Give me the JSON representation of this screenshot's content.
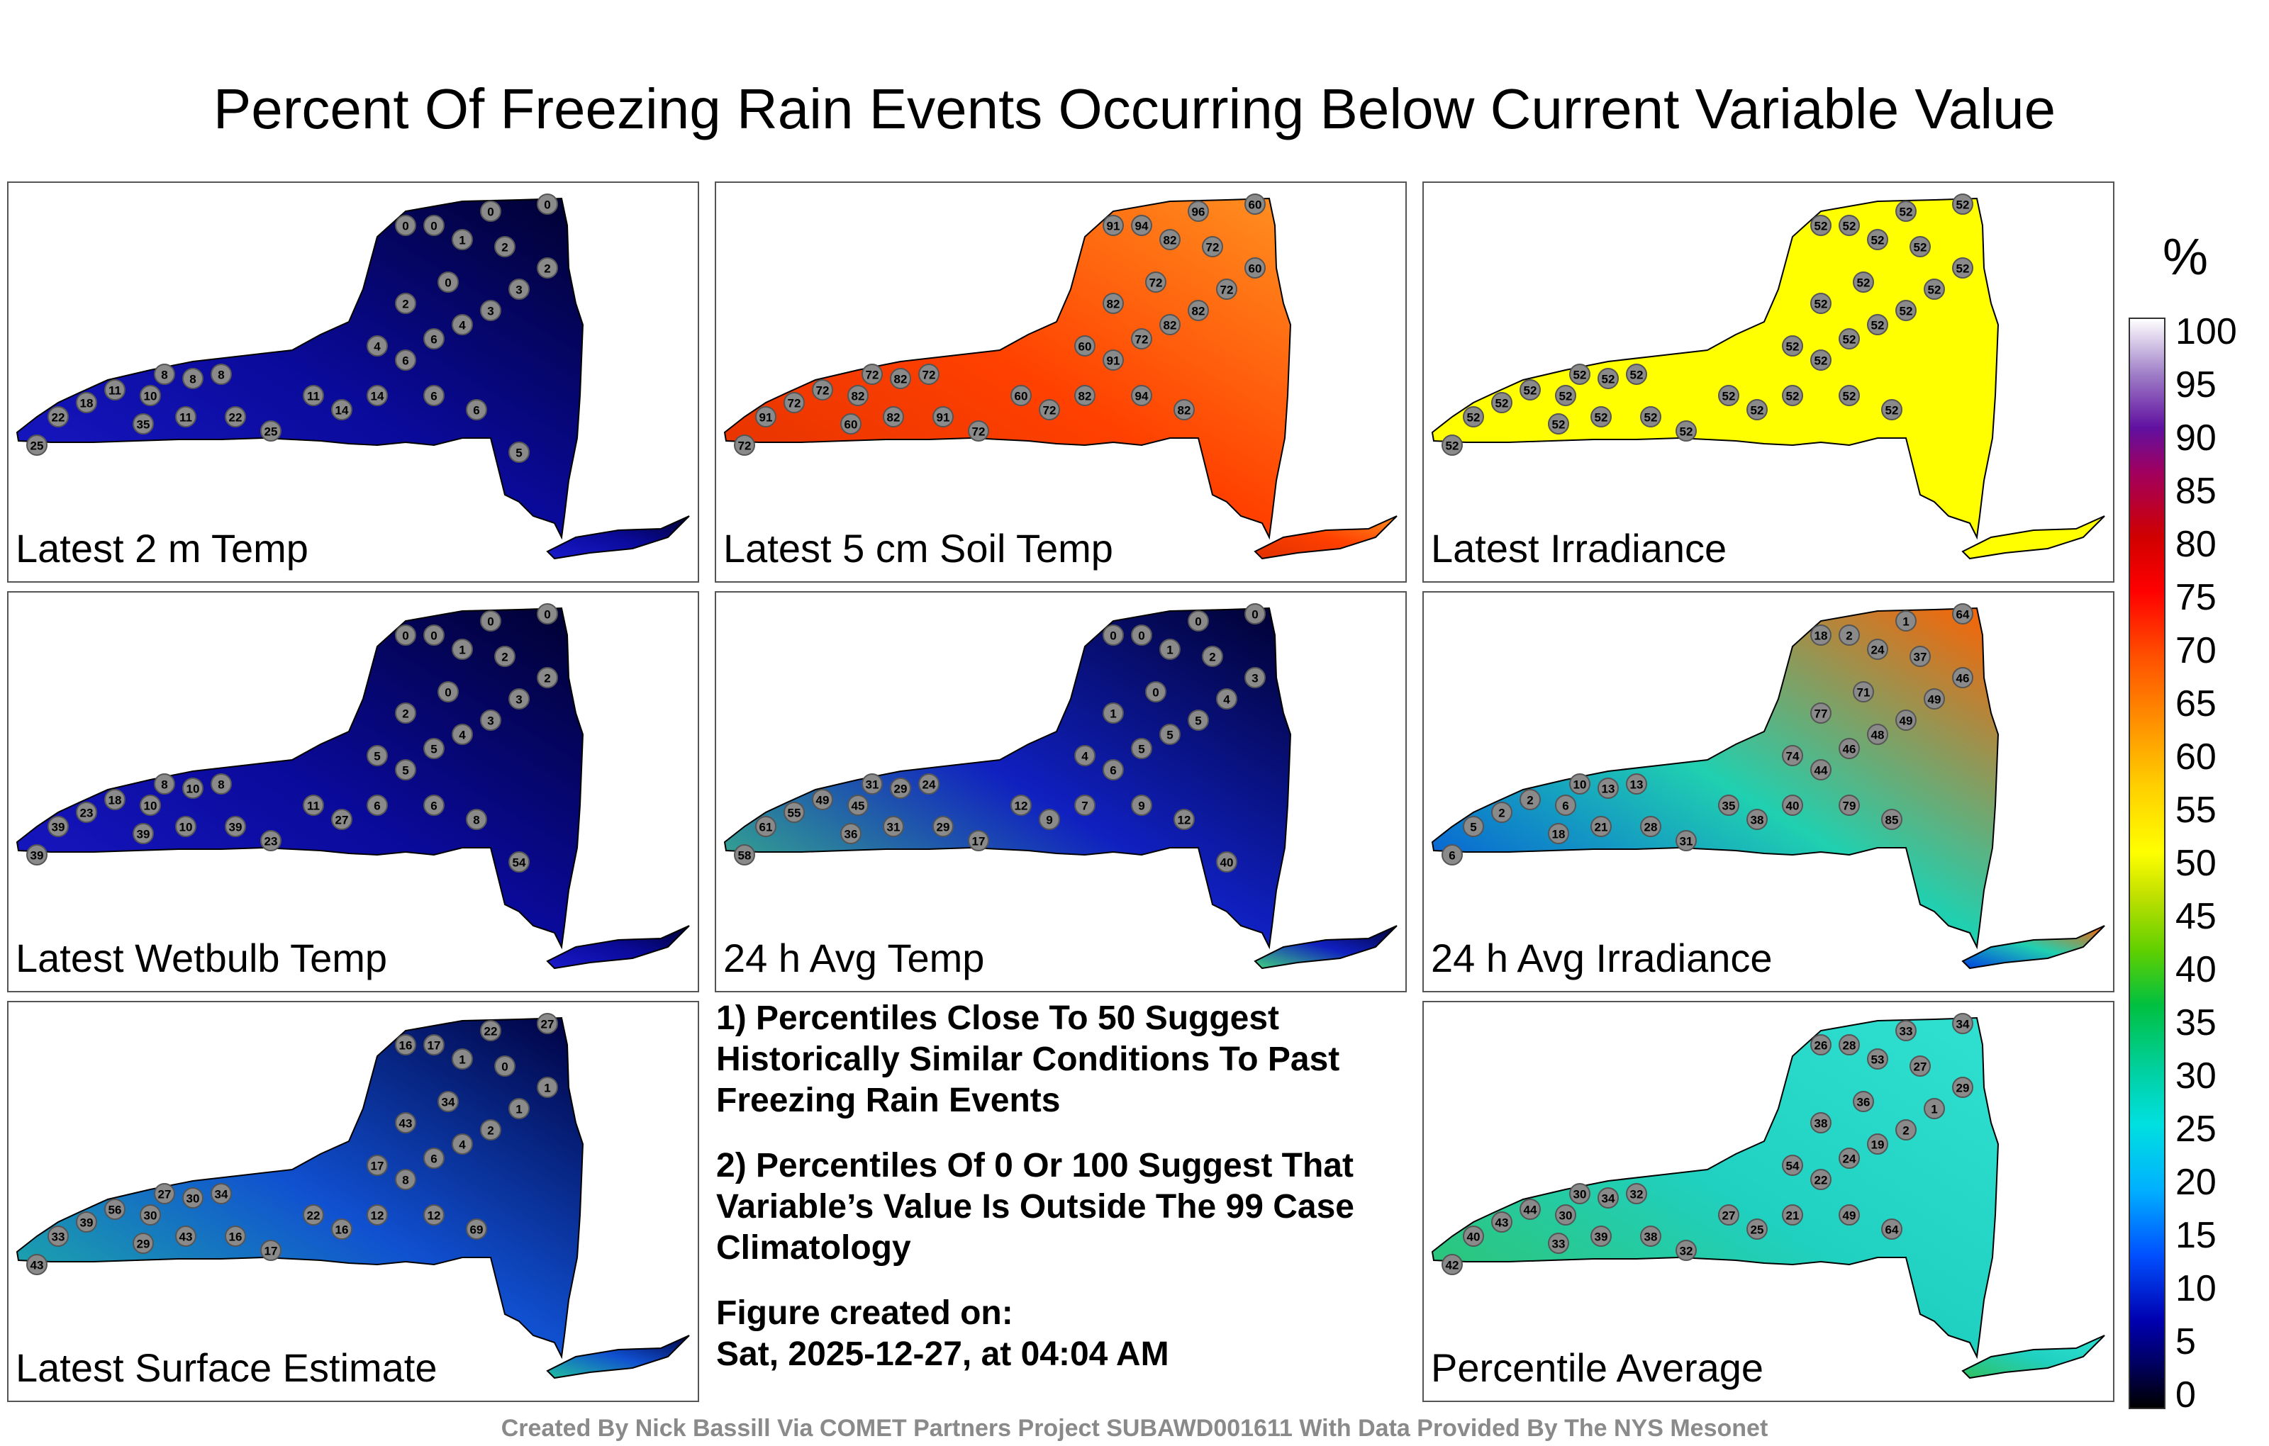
{
  "title": "Percent Of Freezing Rain Events Occurring Below Current Variable Value",
  "panels": [
    {
      "label": "Latest 2 m Temp",
      "regions": [
        "#1a1acc",
        "#0a0a9a",
        "#000030"
      ],
      "stations": [
        "25",
        "22",
        "18",
        "11",
        "10",
        "8",
        "8",
        "8",
        "35",
        "11",
        "22",
        "25",
        "11",
        "14",
        "14",
        "6",
        "6",
        "4",
        "3",
        "3",
        "2",
        "2",
        "1",
        "0",
        "0",
        "0",
        "0",
        "0",
        "2",
        "4",
        "6",
        "6",
        "5"
      ]
    },
    {
      "label": "Latest 5 cm Soil Temp",
      "regions": [
        "#e03000",
        "#ff4000",
        "#ff9020"
      ],
      "stations": [
        "72",
        "91",
        "72",
        "72",
        "82",
        "72",
        "82",
        "72",
        "60",
        "82",
        "91",
        "72",
        "60",
        "72",
        "82",
        "91",
        "72",
        "82",
        "82",
        "72",
        "60",
        "72",
        "82",
        "91",
        "94",
        "96",
        "60",
        "72",
        "82",
        "60",
        "94",
        "82"
      ]
    },
    {
      "label": "Latest Irradiance",
      "regions": [
        "#ffff00",
        "#ffff00",
        "#ffff00"
      ],
      "stations": [
        "52",
        "52",
        "52",
        "52",
        "52",
        "52",
        "52",
        "52",
        "52",
        "52",
        "52",
        "52",
        "52",
        "52",
        "52",
        "52",
        "52",
        "52",
        "52",
        "52",
        "52",
        "52",
        "52",
        "52",
        "52",
        "52",
        "52",
        "52",
        "52",
        "52",
        "52",
        "52"
      ]
    },
    {
      "label": "Latest Wetbulb Temp",
      "regions": [
        "#1a1acc",
        "#0a0a9a",
        "#000030"
      ],
      "stations": [
        "39",
        "39",
        "23",
        "18",
        "10",
        "8",
        "10",
        "8",
        "39",
        "10",
        "39",
        "23",
        "11",
        "27",
        "6",
        "5",
        "5",
        "4",
        "3",
        "3",
        "2",
        "2",
        "1",
        "0",
        "0",
        "0",
        "0",
        "0",
        "2",
        "5",
        "6",
        "8",
        "54"
      ]
    },
    {
      "label": "24 h Avg Temp",
      "regions": [
        "#40d080",
        "#1020c0",
        "#000030"
      ],
      "stations": [
        "58",
        "61",
        "55",
        "49",
        "45",
        "31",
        "29",
        "24",
        "36",
        "31",
        "29",
        "17",
        "12",
        "9",
        "7",
        "6",
        "5",
        "5",
        "5",
        "4",
        "3",
        "2",
        "1",
        "0",
        "0",
        "0",
        "0",
        "0",
        "1",
        "4",
        "9",
        "12",
        "40"
      ]
    },
    {
      "label": "24 h Avg Irradiance",
      "regions": [
        "#0040e0",
        "#20d0b0",
        "#ff6000"
      ],
      "stations": [
        "6",
        "5",
        "2",
        "2",
        "6",
        "10",
        "13",
        "13",
        "18",
        "21",
        "28",
        "31",
        "35",
        "38",
        "40",
        "44",
        "46",
        "48",
        "49",
        "49",
        "46",
        "37",
        "24",
        "18",
        "2",
        "1",
        "64",
        "71",
        "77",
        "74",
        "79",
        "85"
      ]
    },
    {
      "label": "Latest Surface Estimate",
      "regions": [
        "#20c0a0",
        "#1050d0",
        "#000040"
      ],
      "stations": [
        "43",
        "33",
        "39",
        "56",
        "30",
        "27",
        "30",
        "34",
        "29",
        "43",
        "16",
        "17",
        "22",
        "16",
        "12",
        "8",
        "6",
        "4",
        "2",
        "1",
        "1",
        "0",
        "1",
        "16",
        "17",
        "22",
        "27",
        "34",
        "43",
        "17",
        "12",
        "69"
      ]
    },
    {
      "label": "Percentile Average",
      "regions": [
        "#30c060",
        "#20d0c0",
        "#30e0d0"
      ],
      "stations": [
        "42",
        "40",
        "43",
        "44",
        "30",
        "30",
        "34",
        "32",
        "33",
        "39",
        "38",
        "32",
        "27",
        "25",
        "21",
        "22",
        "24",
        "19",
        "2",
        "1",
        "29",
        "27",
        "53",
        "26",
        "28",
        "33",
        "34",
        "36",
        "38",
        "54",
        "49",
        "64"
      ]
    }
  ],
  "notes": {
    "note1": "1) Percentiles Close To 50 Suggest Historically Similar Conditions To Past Freezing Rain Events",
    "note2": "2) Percentiles Of 0 Or 100 Suggest That Variable’s Value Is Outside The 99 Case Climatology",
    "created_label": "Figure created on:",
    "created_date": "Sat, 2025-12-27, at 04:04 AM"
  },
  "colorbar": {
    "unit": "%",
    "ticks": [
      "0",
      "5",
      "10",
      "15",
      "20",
      "25",
      "30",
      "35",
      "40",
      "45",
      "50",
      "55",
      "60",
      "65",
      "70",
      "75",
      "80",
      "85",
      "90",
      "95",
      "100"
    ]
  },
  "credit": "Created By Nick Bassill Via COMET Partners Project SUBAWD001611 With Data Provided By The NYS Mesonet"
}
